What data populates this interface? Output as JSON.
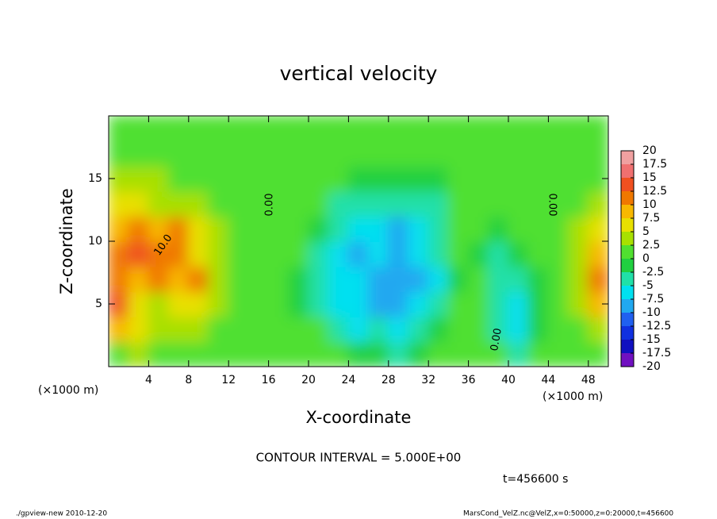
{
  "chart_data": {
    "type": "contour",
    "title": "vertical velocity",
    "x_label": "X-coordinate",
    "y_label": "Z-coordinate",
    "x_unit": "(×1000 m)",
    "y_unit": "(×1000 m)",
    "xlim": [
      0,
      50
    ],
    "ylim": [
      0,
      20
    ],
    "xticks": [
      4,
      8,
      12,
      16,
      20,
      24,
      28,
      32,
      36,
      40,
      44,
      48
    ],
    "yticks": [
      5,
      10,
      15
    ],
    "x": [
      1,
      3,
      5,
      7,
      9,
      11,
      13,
      15,
      17,
      19,
      21,
      23,
      25,
      27,
      29,
      31,
      33,
      35,
      37,
      39,
      41,
      43,
      45,
      47,
      49
    ],
    "y": [
      1,
      3,
      5,
      7,
      9,
      11,
      13,
      15,
      17,
      19
    ],
    "z": [
      [
        2,
        3,
        2,
        1,
        0.5,
        0.5,
        0.5,
        0.5,
        0.5,
        0.5,
        0.5,
        0.5,
        -2,
        -2,
        -3,
        -2,
        0.5,
        0.5,
        0.5,
        0.5,
        -3,
        0.5,
        0.5,
        0.5,
        0.5
      ],
      [
        8,
        5,
        3,
        3,
        3,
        2,
        1,
        1,
        1,
        1,
        1,
        -4,
        -6,
        -5,
        -6,
        -5,
        -2,
        0,
        1,
        -3,
        -6,
        -2,
        1,
        2,
        4
      ],
      [
        13,
        7,
        4,
        6,
        5,
        3,
        1,
        1,
        1,
        -1,
        -3,
        -6,
        -7,
        -8,
        -8,
        -7,
        -4,
        0,
        0,
        -4,
        -6,
        -2,
        1,
        3,
        9
      ],
      [
        12,
        9,
        12,
        8,
        10,
        4,
        2,
        1,
        1,
        -1,
        -4,
        -6,
        -7,
        -8,
        -9,
        -8,
        -6,
        -1,
        0,
        -3,
        -5,
        -1,
        1,
        4,
        10
      ],
      [
        10,
        13,
        11,
        12,
        7,
        4,
        2,
        1,
        1,
        1,
        -3,
        -6,
        -9,
        -7,
        -9,
        -7,
        -5,
        0,
        -1,
        -3,
        -2,
        0,
        1,
        4,
        8
      ],
      [
        9,
        12,
        8,
        11,
        6,
        3,
        1,
        1,
        1,
        1,
        -2,
        -5,
        -7,
        -6,
        -8,
        -6,
        -4,
        0,
        0,
        -2,
        0,
        1,
        1,
        3,
        6
      ],
      [
        5,
        6,
        4,
        4,
        3,
        2,
        1,
        1,
        1,
        1,
        1,
        -3,
        -4,
        -4,
        -4,
        -4,
        -3,
        0,
        1,
        1,
        1,
        1,
        1,
        2,
        3
      ],
      [
        3,
        3,
        3,
        2,
        2,
        2,
        1,
        1,
        1,
        1,
        1,
        1,
        -2,
        -2,
        -2,
        -2,
        -2,
        1,
        1,
        1,
        1,
        1,
        1,
        1,
        1
      ],
      [
        2,
        2,
        2,
        2,
        2,
        1,
        1,
        1,
        1,
        1,
        1,
        1,
        1,
        1,
        1,
        1,
        1,
        1,
        1,
        1,
        1,
        1,
        1,
        1,
        1
      ],
      [
        0.5,
        0.5,
        0.5,
        0.5,
        0.5,
        0.5,
        0.5,
        0.5,
        0.5,
        0.5,
        0.5,
        0.5,
        0.5,
        0.5,
        0.5,
        0.5,
        0.5,
        0.5,
        0.5,
        0.5,
        0.5,
        0.5,
        0.5,
        0.5,
        0.5
      ]
    ],
    "levels": [
      -20,
      -17.5,
      -15,
      -12.5,
      -10,
      -7.5,
      -5,
      -2.5,
      0,
      2.5,
      5,
      7.5,
      10,
      12.5,
      15,
      17.5,
      20
    ],
    "colors": [
      "#7010c0",
      "#1010c0",
      "#1030e0",
      "#2060f0",
      "#20a8f0",
      "#00e0f0",
      "#20e0a8",
      "#20d040",
      "#50e030",
      "#a8e000",
      "#e8e000",
      "#f8b800",
      "#f07800",
      "#f05020",
      "#f07070",
      "#f0a0a0"
    ],
    "contour_labels": [
      "10.0",
      "0.00",
      "0.00",
      "0.00"
    ],
    "contour_interval": "CONTOUR INTERVAL = 5.000E+00",
    "time": "t=456600 s",
    "footer_left": "./gpview-new  2010-12-20",
    "footer_right": "MarsCond_VelZ.nc@VelZ,x=0:50000,z=0:20000,t=456600"
  }
}
